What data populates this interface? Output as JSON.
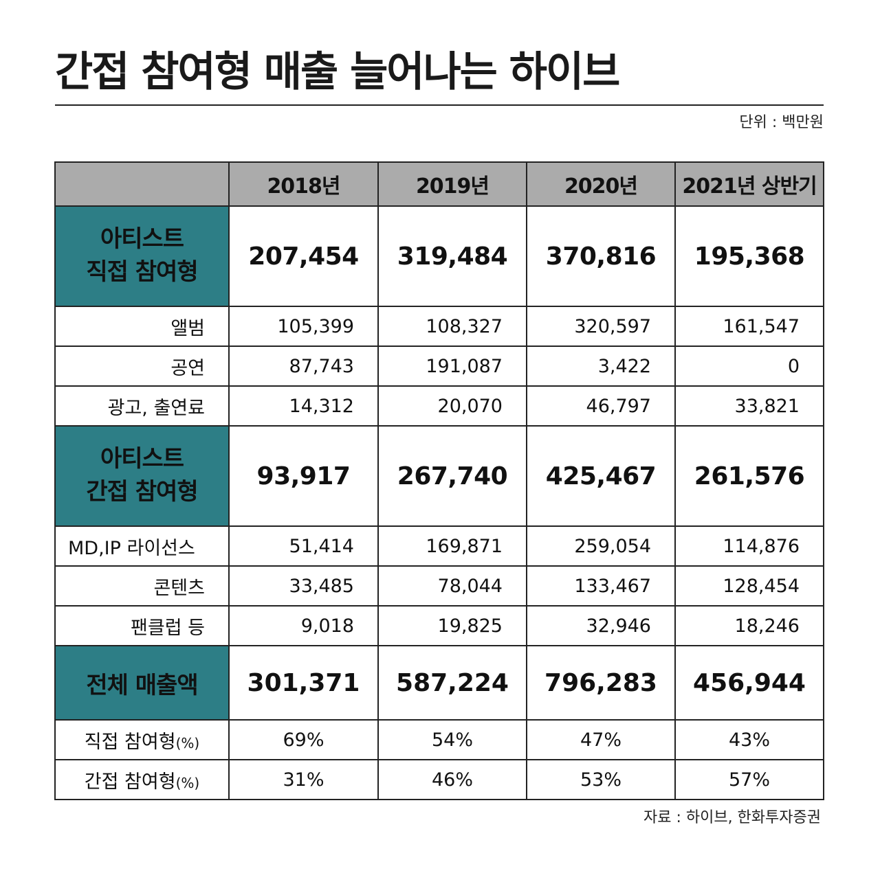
{
  "title": "간접 참여형 매출 늘어나는 하이브",
  "unit": "단위 : 백만원",
  "source": "자료 : 하이브, 한화투자증권",
  "colors": {
    "header_bg": "#ababab",
    "category_bg": "#2d7e86",
    "border": "#222222"
  },
  "columns": [
    "2018년",
    "2019년",
    "2020년",
    "2021년 상반기"
  ],
  "direct": {
    "label_line1": "아티스트",
    "label_line2": "직접 참여형",
    "values": [
      "207,454",
      "319,484",
      "370,816",
      "195,368"
    ],
    "rows": [
      {
        "label": "앨범",
        "values": [
          "105,399",
          "108,327",
          "320,597",
          "161,547"
        ]
      },
      {
        "label": "공연",
        "values": [
          "87,743",
          "191,087",
          "3,422",
          "0"
        ]
      },
      {
        "label": "광고, 출연료",
        "values": [
          "14,312",
          "20,070",
          "46,797",
          "33,821"
        ]
      }
    ]
  },
  "indirect": {
    "label_line1": "아티스트",
    "label_line2": "간접 참여형",
    "values": [
      "93,917",
      "267,740",
      "425,467",
      "261,576"
    ],
    "rows": [
      {
        "label": "MD,IP 라이선스",
        "values": [
          "51,414",
          "169,871",
          "259,054",
          "114,876"
        ]
      },
      {
        "label": "콘텐츠",
        "values": [
          "33,485",
          "78,044",
          "133,467",
          "128,454"
        ]
      },
      {
        "label": "팬클럽 등",
        "values": [
          "9,018",
          "19,825",
          "32,946",
          "18,246"
        ]
      }
    ]
  },
  "total": {
    "label": "전체 매출액",
    "values": [
      "301,371",
      "587,224",
      "796,283",
      "456,944"
    ]
  },
  "share": [
    {
      "label": "직접 참여형",
      "suffix": "(%)",
      "values": [
        "69%",
        "54%",
        "47%",
        "43%"
      ]
    },
    {
      "label": "간접 참여형",
      "suffix": "(%)",
      "values": [
        "31%",
        "46%",
        "53%",
        "57%"
      ]
    }
  ]
}
